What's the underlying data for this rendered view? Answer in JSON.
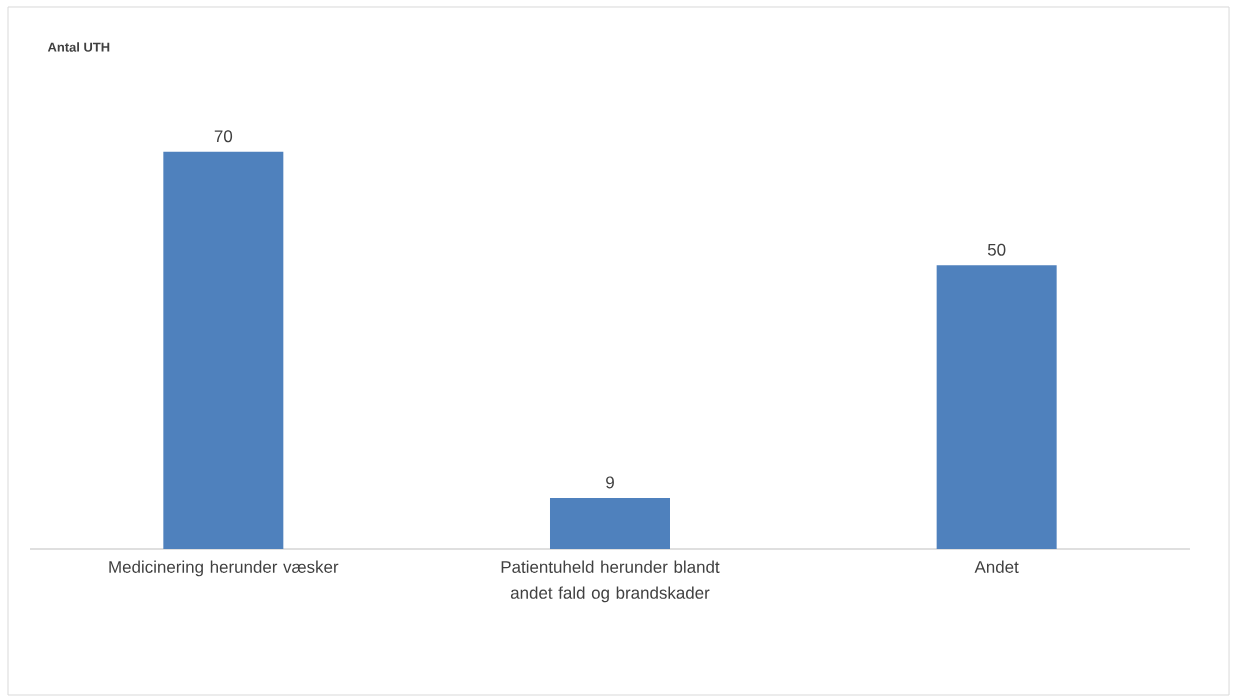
{
  "chart_data": {
    "type": "bar",
    "title": "Antal UTH",
    "categories": [
      "Medicinering herunder væsker",
      "Patientuheld herunder blandt andet fald og brandskader",
      "Andet"
    ],
    "values": [
      70,
      9,
      50
    ],
    "color": "#4f81bd",
    "data_labels": true
  }
}
